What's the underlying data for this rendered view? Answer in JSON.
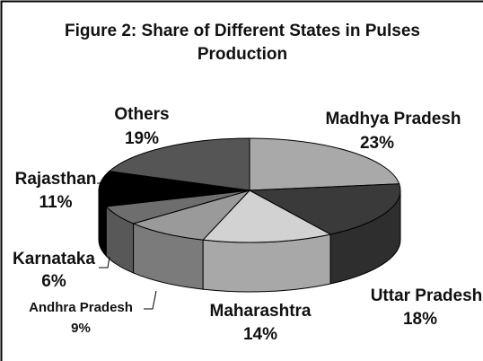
{
  "chart_data": {
    "type": "pie3d",
    "title": "Figure 2: Share of Different States in Pulses Production",
    "categories": [
      "Madhya Pradesh",
      "Uttar Pradesh",
      "Maharashtra",
      "Andhra Pradesh",
      "Karnataka",
      "Rajasthan",
      "Others"
    ],
    "values": [
      23,
      18,
      14,
      9,
      6,
      11,
      19
    ],
    "value_labels": [
      "23%",
      "18%",
      "14%",
      "9%",
      "6%",
      "11%",
      "19%"
    ],
    "colors": [
      "#a9a9a9",
      "#3a3a3a",
      "#d2d2d2",
      "#9a9a9a",
      "#6e6e6e",
      "#000000",
      "#555555"
    ]
  }
}
